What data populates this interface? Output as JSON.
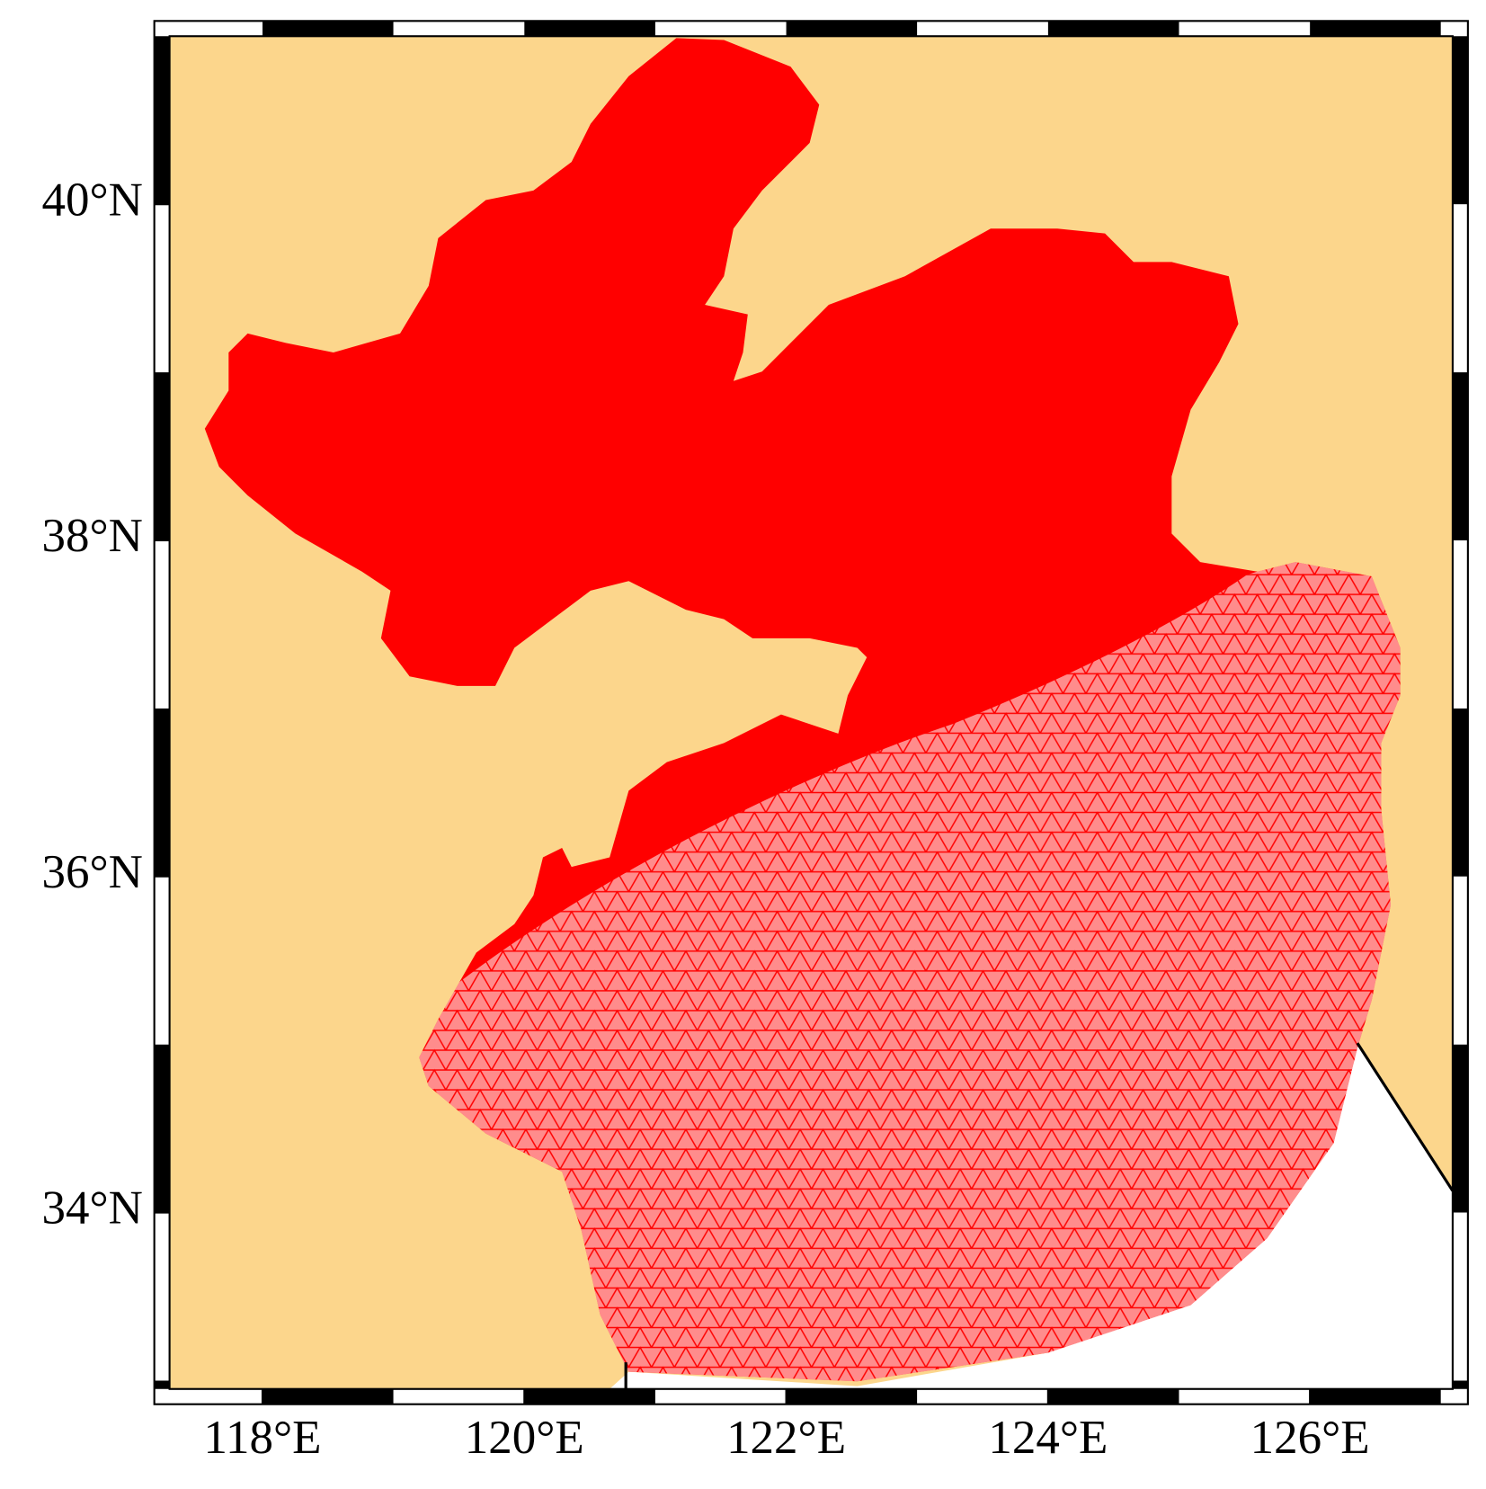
{
  "map_data": {
    "type": "map",
    "xlim": [
      117.29,
      127.09
    ],
    "ylim": [
      32.95,
      41.0
    ],
    "xticks": [
      {
        "value": 118,
        "label": "118°E"
      },
      {
        "value": 120,
        "label": "120°E"
      },
      {
        "value": 122,
        "label": "122°E"
      },
      {
        "value": 124,
        "label": "124°E"
      },
      {
        "value": 126,
        "label": "126°E"
      }
    ],
    "yticks": [
      {
        "value": 34,
        "label": "34°N"
      },
      {
        "value": 36,
        "label": "36°N"
      },
      {
        "value": 38,
        "label": "38°N"
      },
      {
        "value": 40,
        "label": "40°N"
      }
    ],
    "colors": {
      "land": "#fcd68c",
      "mesh": "#ff0000",
      "ocean": "#ffffff"
    }
  }
}
